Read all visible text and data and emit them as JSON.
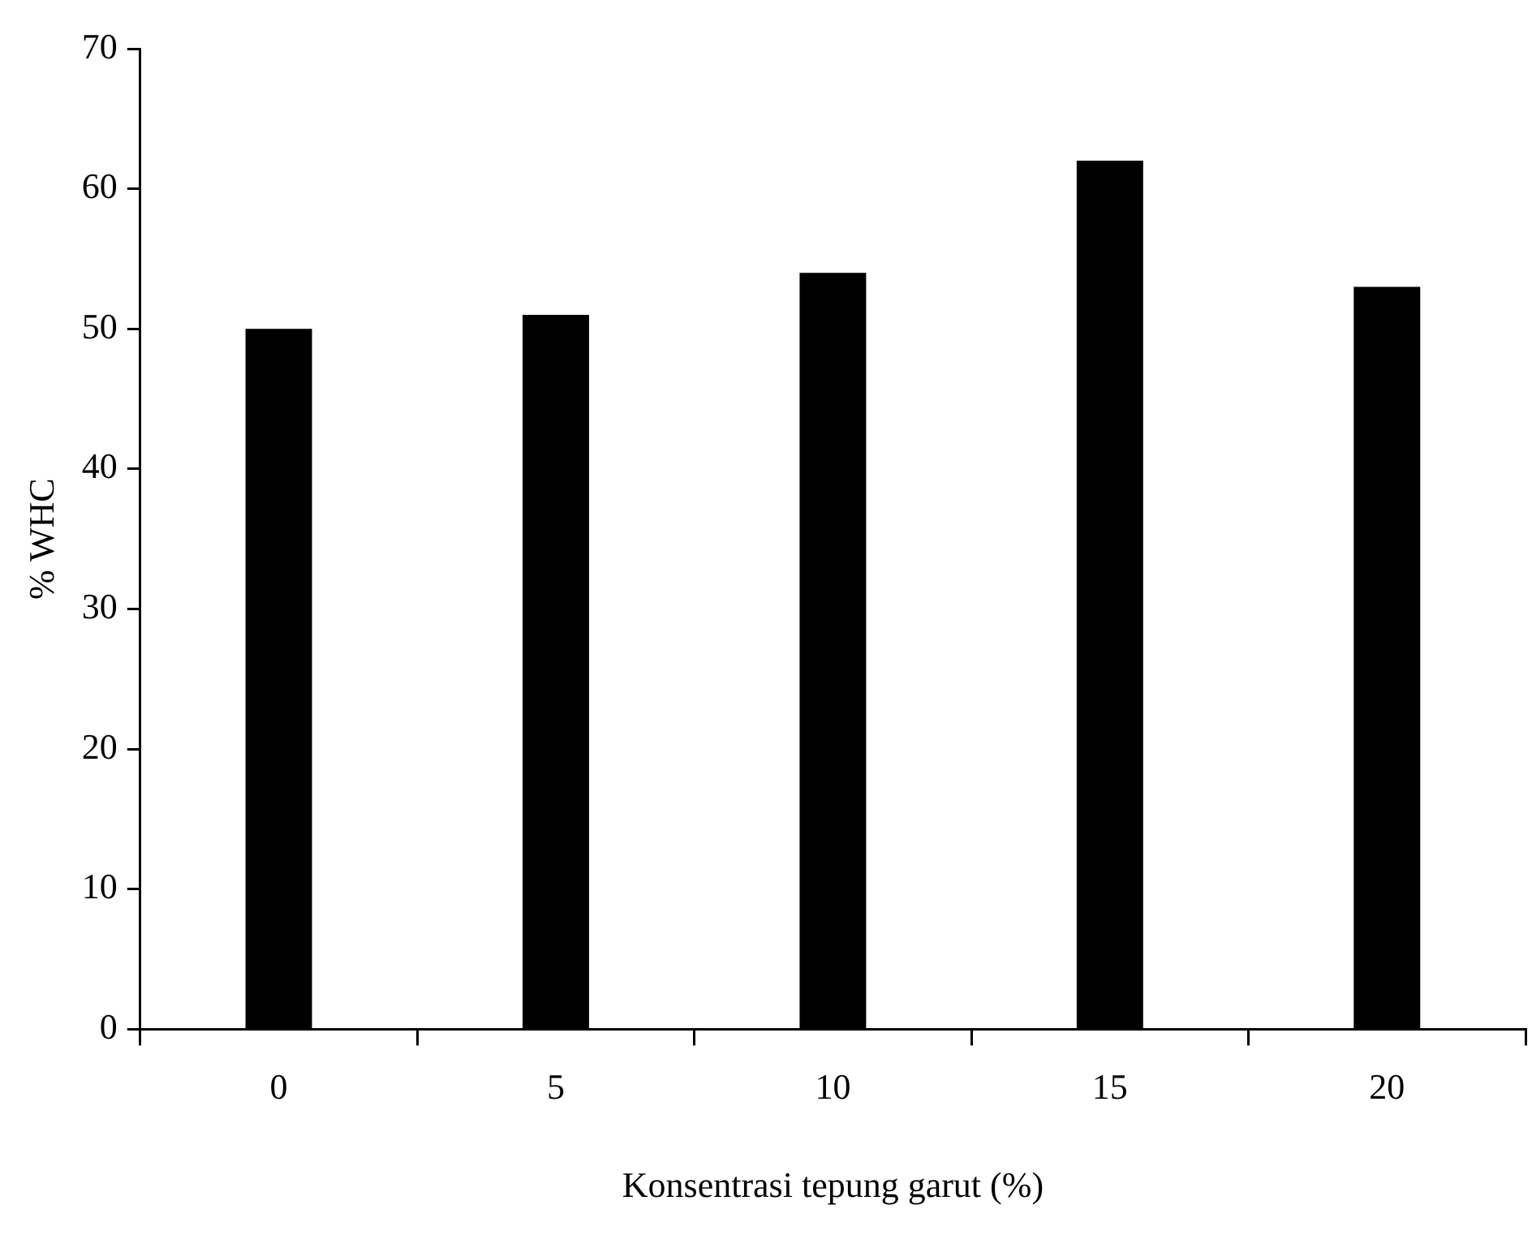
{
  "chart_data": {
    "type": "bar",
    "xlabel": "Konsentrasi tepung garut (%)",
    "ylabel": "% WHC",
    "categories": [
      "0",
      "5",
      "10",
      "15",
      "20"
    ],
    "values": [
      50,
      51,
      54,
      62,
      53
    ],
    "color": "#000000",
    "ylim": [
      0,
      70
    ],
    "yticks": [
      0,
      10,
      20,
      30,
      40,
      50,
      60,
      70
    ],
    "grid": false,
    "legend": false
  }
}
